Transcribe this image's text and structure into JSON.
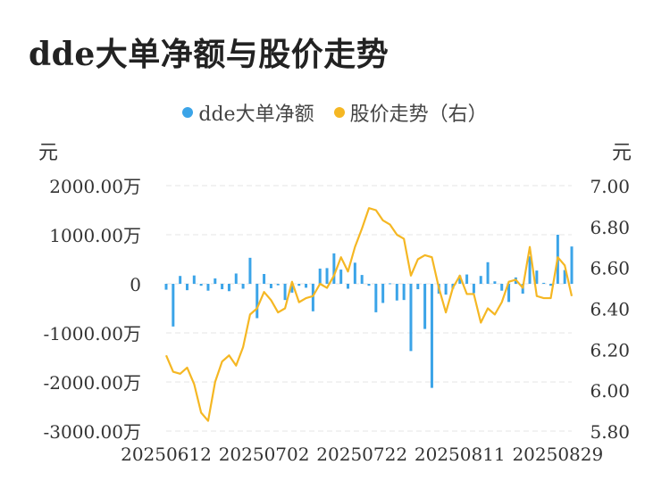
{
  "colors": {
    "bar": "#3BA4E8",
    "line": "#F5B723",
    "grid": "#E6E6E6",
    "text": "#333333"
  },
  "chart_data": {
    "type": "bar+line",
    "title": "dde大单净额与股价走势",
    "legend_placement": "top-center",
    "left_axis": {
      "unit": "元",
      "range": [
        -3000,
        2000
      ],
      "ticks": [
        -3000,
        -2000,
        -1000,
        0,
        1000,
        2000
      ],
      "tick_labels": [
        "-3000.00万",
        "-2000.00万",
        "-1000.00万",
        "0",
        "1000.00万",
        "2000.00万"
      ]
    },
    "right_axis": {
      "unit": "元",
      "range": [
        5.8,
        7.0
      ],
      "ticks": [
        5.8,
        6.0,
        6.2,
        6.4,
        6.6,
        6.8,
        7.0
      ],
      "tick_labels": [
        "5.80",
        "6.00",
        "6.20",
        "6.40",
        "6.60",
        "6.80",
        "7.00"
      ]
    },
    "x_tick_labels": [
      {
        "index": 0,
        "label": "20250612"
      },
      {
        "index": 14,
        "label": "20250702"
      },
      {
        "index": 28,
        "label": "20250722"
      },
      {
        "index": 42,
        "label": "20250811"
      },
      {
        "index": 56,
        "label": "20250829"
      }
    ],
    "series": [
      {
        "name": "dde大单净额",
        "type": "bar",
        "axis": "left",
        "values": [
          -120,
          -870,
          160,
          -130,
          170,
          -40,
          -140,
          110,
          -110,
          -150,
          210,
          -100,
          530,
          -700,
          200,
          -90,
          -30,
          -330,
          -180,
          -40,
          -80,
          -560,
          310,
          320,
          620,
          290,
          -100,
          430,
          180,
          -40,
          -580,
          -390,
          10,
          -340,
          -330,
          -1370,
          -110,
          -920,
          -2120,
          -200,
          -220,
          -100,
          170,
          190,
          -190,
          160,
          440,
          50,
          -140,
          -370,
          130,
          -200,
          560,
          270,
          20,
          -40,
          1000,
          280,
          760
        ]
      },
      {
        "name": "股价走势（右）",
        "type": "line",
        "axis": "right",
        "values": [
          6.17,
          6.09,
          6.08,
          6.11,
          6.03,
          5.89,
          5.85,
          6.04,
          6.14,
          6.17,
          6.12,
          6.21,
          6.37,
          6.4,
          6.48,
          6.44,
          6.38,
          6.4,
          6.53,
          6.43,
          6.45,
          6.46,
          6.52,
          6.5,
          6.56,
          6.65,
          6.58,
          6.7,
          6.79,
          6.89,
          6.88,
          6.83,
          6.81,
          6.76,
          6.74,
          6.56,
          6.64,
          6.66,
          6.65,
          6.5,
          6.38,
          6.5,
          6.56,
          6.47,
          6.47,
          6.33,
          6.4,
          6.37,
          6.43,
          6.53,
          6.54,
          6.5,
          6.7,
          6.46,
          6.45,
          6.45,
          6.65,
          6.61,
          6.46
        ]
      }
    ]
  }
}
